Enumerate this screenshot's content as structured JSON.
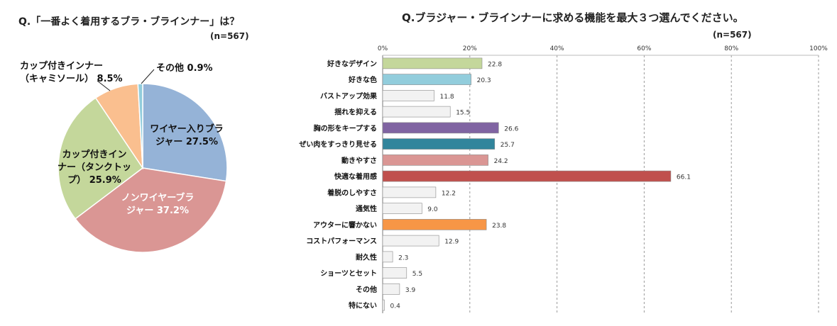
{
  "chart_data": [
    {
      "type": "pie",
      "title": "Q.「一番よく着用するブラ・ブラインナー」は？",
      "n_label": "(n=567)",
      "unit": "%",
      "slices": [
        {
          "label": "ワイヤー入りブラジャー",
          "value": 27.5,
          "color": "#95b3d7"
        },
        {
          "label": "ノンワイヤーブラジャー",
          "value": 37.2,
          "color": "#da9694"
        },
        {
          "label": "カップ付きインナー（タンクトップ）",
          "value": 25.9,
          "color": "#c4d79b"
        },
        {
          "label": "カップ付きインナー（キャミソール）",
          "value": 8.5,
          "color": "#fabf8f"
        },
        {
          "label": "その他",
          "value": 0.9,
          "color": "#92cddc"
        }
      ],
      "slice_label_text": [
        [
          "ワイヤー入りブラ",
          "ジャー 27.5%"
        ],
        [
          "ノンワイヤーブラ",
          "ジャー 37.2%"
        ],
        [
          "カップ付きイン",
          "ナー（タンクトッ",
          "プ） 25.9%"
        ],
        [
          "カップ付きインナー",
          "（キャミソール） 8.5%"
        ],
        [
          "その他 0.9%"
        ]
      ]
    },
    {
      "type": "bar",
      "orientation": "horizontal",
      "title": "Q.ブラジャー・ブラインナーに求める機能を最大３つ選んでください。",
      "n_label": "(n=567)",
      "xlim": [
        0,
        100
      ],
      "x_ticks": [
        "0%",
        "20%",
        "40%",
        "60%",
        "80%",
        "100%"
      ],
      "grid": "vertical dashed",
      "categories": [
        "好きなデザイン",
        "好きな色",
        "バストアップ効果",
        "揺れを抑える",
        "胸の形をキープする",
        "ぜい肉をすっきり見せる",
        "動きやすさ",
        "快適な着用感",
        "着脱のしやすさ",
        "通気性",
        "アウターに響かない",
        "コストパフォーマンス",
        "耐久性",
        "ショーツとセット",
        "その他",
        "特にない"
      ],
      "values": [
        22.8,
        20.3,
        11.8,
        15.5,
        26.6,
        25.7,
        24.2,
        66.1,
        12.2,
        9.0,
        23.8,
        12.9,
        2.3,
        5.5,
        3.9,
        0.4
      ],
      "value_labels": [
        "22.8",
        "20.3",
        "11.8",
        "15.5",
        "26.6",
        "25.7",
        "24.2",
        "66.1",
        "12.2",
        "9.0",
        "23.8",
        "12.9",
        "2.3",
        "5.5",
        "3.9",
        "0.4"
      ],
      "colors": [
        "#c4d79b",
        "#92cddc",
        "#f2f2f2",
        "#f2f2f2",
        "#8064a2",
        "#31859c",
        "#da9694",
        "#c0504d",
        "#f2f2f2",
        "#f2f2f2",
        "#f79646",
        "#f2f2f2",
        "#f2f2f2",
        "#f2f2f2",
        "#f2f2f2",
        "#f2f2f2"
      ]
    }
  ]
}
